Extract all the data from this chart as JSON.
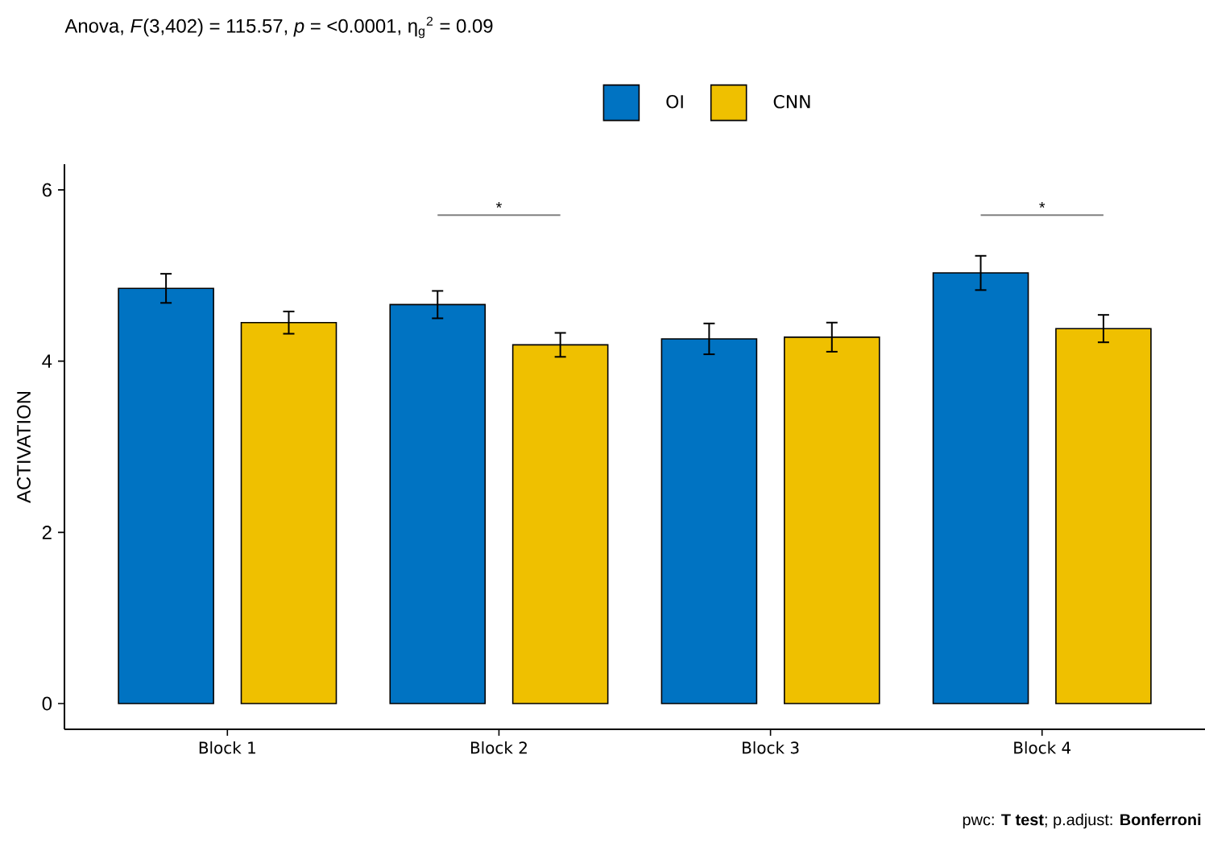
{
  "chart_data": {
    "type": "bar",
    "title": "Anova, *F*(3,402) = 115.57, *p* = <0.0001, η$_{g}$$^{2}$ = 0.09",
    "ylabel": "ACTIVATION",
    "categories": [
      "Block 1",
      "Block 2",
      "Block 3",
      "Block 4"
    ],
    "series": [
      {
        "name": "OI",
        "color": "#0073c2",
        "values": [
          4.85,
          4.66,
          4.26,
          5.03
        ],
        "errors": [
          0.17,
          0.16,
          0.18,
          0.2
        ]
      },
      {
        "name": "CNN",
        "color": "#efc000",
        "values": [
          4.45,
          4.19,
          4.28,
          4.38
        ],
        "errors": [
          0.13,
          0.14,
          0.17,
          0.16
        ]
      }
    ],
    "ylim": [
      -0.3,
      6.3
    ],
    "yticks": [
      0,
      2,
      4,
      6
    ],
    "legend": "top",
    "grid": false,
    "annotations": [
      "*",
      "*",
      "pwc: **T test**; p.adjust: **Bonferroni**"
    ]
  }
}
